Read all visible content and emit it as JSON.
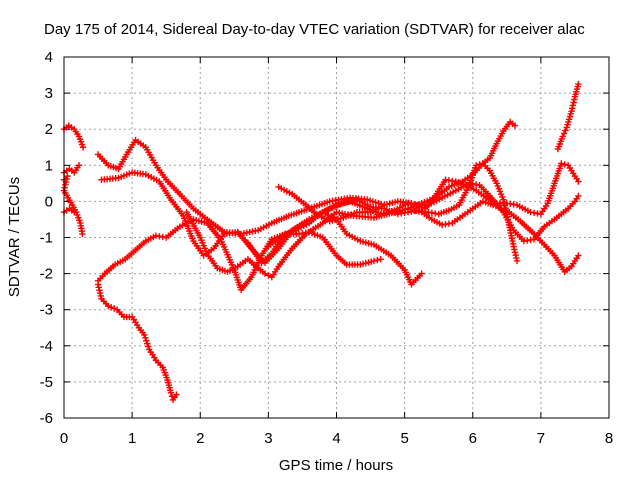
{
  "chart_data": {
    "type": "scatter",
    "title": "Day 175 of 2014, Sidereal Day-to-day VTEC variation (SDTVAR) for receiver alac",
    "xlabel": "GPS time / hours",
    "ylabel": "SDTVAR / TECUs",
    "xlim": [
      0,
      8
    ],
    "ylim": [
      -6,
      4
    ],
    "xticks": [
      "0",
      "1",
      "2",
      "3",
      "4",
      "5",
      "6",
      "7",
      "8"
    ],
    "yticks": [
      "-6",
      "-5",
      "-4",
      "-3",
      "-2",
      "-1",
      "0",
      "1",
      "2",
      "3",
      "4"
    ],
    "grid": true,
    "marker": "plus",
    "color": "#ff0000",
    "series": [
      {
        "name": "track-1",
        "points": [
          [
            0.0,
            2.0
          ],
          [
            0.07,
            2.1
          ],
          [
            0.15,
            2.0
          ],
          [
            0.22,
            1.8
          ],
          [
            0.28,
            1.5
          ]
        ]
      },
      {
        "name": "track-2",
        "points": [
          [
            0.0,
            0.8
          ],
          [
            0.08,
            0.9
          ],
          [
            0.15,
            0.8
          ],
          [
            0.22,
            1.0
          ]
        ]
      },
      {
        "name": "track-3",
        "points": [
          [
            0.0,
            0.6
          ],
          [
            0.05,
            0.7
          ],
          [
            0.0,
            0.3
          ],
          [
            0.06,
            0.1
          ],
          [
            0.12,
            -0.1
          ],
          [
            0.18,
            -0.3
          ],
          [
            0.24,
            -0.6
          ],
          [
            0.27,
            -0.9
          ]
        ]
      },
      {
        "name": "track-4",
        "points": [
          [
            0.0,
            -0.3
          ],
          [
            0.08,
            -0.2
          ],
          [
            0.15,
            -0.3
          ]
        ]
      },
      {
        "name": "track-5",
        "points": [
          [
            0.5,
            1.3
          ],
          [
            0.65,
            1.0
          ],
          [
            0.8,
            0.9
          ],
          [
            0.92,
            1.3
          ],
          [
            1.05,
            1.7
          ],
          [
            1.2,
            1.5
          ],
          [
            1.35,
            1.0
          ],
          [
            1.5,
            0.6
          ],
          [
            1.7,
            0.2
          ],
          [
            1.9,
            -0.2
          ],
          [
            2.1,
            -0.5
          ],
          [
            2.35,
            -0.85
          ],
          [
            2.6,
            -0.9
          ],
          [
            2.85,
            -0.8
          ],
          [
            3.05,
            -0.6
          ],
          [
            3.3,
            -0.4
          ],
          [
            3.6,
            -0.2
          ],
          [
            3.9,
            0.0
          ],
          [
            4.2,
            0.1
          ],
          [
            4.45,
            0.05
          ],
          [
            4.7,
            -0.1
          ]
        ]
      },
      {
        "name": "track-6",
        "points": [
          [
            0.55,
            0.6
          ],
          [
            0.8,
            0.65
          ],
          [
            1.0,
            0.8
          ],
          [
            1.2,
            0.75
          ],
          [
            1.4,
            0.55
          ],
          [
            1.55,
            0.1
          ],
          [
            1.75,
            -0.4
          ],
          [
            1.9,
            -1.1
          ],
          [
            2.05,
            -1.5
          ],
          [
            2.2,
            -1.3
          ],
          [
            2.35,
            -0.9
          ],
          [
            2.55,
            -0.85
          ],
          [
            2.75,
            -1.3
          ],
          [
            2.95,
            -1.7
          ],
          [
            3.15,
            -1.3
          ],
          [
            3.35,
            -0.8
          ],
          [
            3.6,
            -0.5
          ],
          [
            3.8,
            -0.3
          ],
          [
            4.0,
            -0.5
          ],
          [
            4.15,
            -0.9
          ],
          [
            4.35,
            -1.1
          ],
          [
            4.55,
            -1.2
          ],
          [
            4.8,
            -1.5
          ],
          [
            5.0,
            -1.9
          ],
          [
            5.1,
            -2.3
          ],
          [
            5.25,
            -2.0
          ]
        ]
      },
      {
        "name": "track-7",
        "points": [
          [
            0.5,
            -2.2
          ],
          [
            0.6,
            -2.0
          ],
          [
            0.75,
            -1.75
          ],
          [
            0.9,
            -1.6
          ],
          [
            1.05,
            -1.35
          ],
          [
            1.2,
            -1.1
          ],
          [
            1.35,
            -0.95
          ],
          [
            1.5,
            -1.0
          ],
          [
            1.7,
            -0.7
          ],
          [
            1.9,
            -0.5
          ],
          [
            2.1,
            -0.6
          ],
          [
            2.3,
            -1.05
          ],
          [
            2.5,
            -1.9
          ],
          [
            2.6,
            -2.45
          ],
          [
            2.75,
            -2.1
          ],
          [
            2.9,
            -1.5
          ],
          [
            3.05,
            -1.05
          ],
          [
            3.25,
            -0.9
          ],
          [
            3.45,
            -0.9
          ],
          [
            3.6,
            -0.85
          ],
          [
            3.8,
            -1.0
          ],
          [
            4.0,
            -1.5
          ],
          [
            4.15,
            -1.75
          ],
          [
            4.35,
            -1.75
          ],
          [
            4.55,
            -1.65
          ],
          [
            4.65,
            -1.6
          ]
        ]
      },
      {
        "name": "track-8",
        "points": [
          [
            0.5,
            -2.3
          ],
          [
            0.55,
            -2.7
          ],
          [
            0.65,
            -2.9
          ],
          [
            0.78,
            -3.0
          ],
          [
            0.88,
            -3.2
          ],
          [
            1.0,
            -3.2
          ],
          [
            1.1,
            -3.5
          ],
          [
            1.18,
            -3.7
          ],
          [
            1.25,
            -4.1
          ],
          [
            1.35,
            -4.4
          ],
          [
            1.45,
            -4.6
          ],
          [
            1.52,
            -4.95
          ],
          [
            1.57,
            -5.3
          ],
          [
            1.6,
            -5.5
          ],
          [
            1.65,
            -5.35
          ]
        ]
      },
      {
        "name": "track-9",
        "points": [
          [
            1.8,
            -0.3
          ],
          [
            2.0,
            -1.0
          ],
          [
            2.1,
            -1.45
          ],
          [
            2.25,
            -1.85
          ],
          [
            2.4,
            -1.95
          ],
          [
            2.55,
            -1.8
          ],
          [
            2.7,
            -1.6
          ],
          [
            2.85,
            -1.85
          ],
          [
            2.95,
            -2.0
          ],
          [
            3.05,
            -2.1
          ],
          [
            3.15,
            -1.8
          ],
          [
            3.35,
            -1.3
          ],
          [
            3.55,
            -0.9
          ],
          [
            3.8,
            -0.6
          ],
          [
            4.0,
            -0.3
          ],
          [
            4.25,
            -0.4
          ],
          [
            4.55,
            -0.45
          ],
          [
            4.85,
            -0.3
          ],
          [
            5.05,
            -0.2
          ],
          [
            5.25,
            -0.3
          ],
          [
            5.4,
            -0.5
          ],
          [
            5.55,
            -0.65
          ],
          [
            5.7,
            -0.6
          ],
          [
            5.85,
            -0.4
          ],
          [
            6.0,
            -0.2
          ],
          [
            6.15,
            0.0
          ],
          [
            6.3,
            -0.1
          ],
          [
            6.5,
            -0.25
          ],
          [
            6.7,
            -0.55
          ],
          [
            6.9,
            -0.9
          ],
          [
            7.05,
            -1.2
          ],
          [
            7.2,
            -1.5
          ],
          [
            7.35,
            -1.95
          ],
          [
            7.45,
            -1.8
          ],
          [
            7.55,
            -1.5
          ]
        ]
      },
      {
        "name": "track-10",
        "points": [
          [
            2.7,
            -1.15
          ],
          [
            2.9,
            -1.7
          ],
          [
            3.05,
            -1.45
          ],
          [
            3.2,
            -1.0
          ],
          [
            3.4,
            -0.75
          ],
          [
            3.6,
            -0.5
          ],
          [
            3.8,
            -0.3
          ],
          [
            4.0,
            -0.1
          ],
          [
            4.2,
            0.0
          ],
          [
            4.45,
            -0.2
          ],
          [
            4.65,
            -0.35
          ],
          [
            4.85,
            -0.25
          ],
          [
            5.05,
            -0.05
          ],
          [
            5.2,
            -0.1
          ],
          [
            5.35,
            -0.1
          ],
          [
            5.55,
            0.1
          ],
          [
            5.75,
            0.3
          ],
          [
            5.95,
            0.5
          ],
          [
            6.1,
            0.45
          ],
          [
            6.25,
            0.15
          ],
          [
            6.45,
            -0.3
          ],
          [
            6.6,
            -0.8
          ],
          [
            6.75,
            -1.1
          ],
          [
            6.9,
            -1.05
          ],
          [
            7.05,
            -0.7
          ],
          [
            7.2,
            -0.5
          ],
          [
            7.4,
            -0.2
          ],
          [
            7.5,
            0.0
          ],
          [
            7.55,
            0.15
          ]
        ]
      },
      {
        "name": "track-11",
        "points": [
          [
            3.15,
            0.4
          ],
          [
            3.35,
            0.2
          ],
          [
            3.55,
            -0.1
          ],
          [
            3.7,
            -0.35
          ],
          [
            3.9,
            -0.55
          ],
          [
            4.1,
            -0.45
          ],
          [
            4.3,
            -0.3
          ],
          [
            4.5,
            -0.3
          ],
          [
            4.7,
            -0.1
          ],
          [
            4.9,
            0.0
          ],
          [
            5.1,
            -0.05
          ],
          [
            5.3,
            -0.2
          ],
          [
            5.45,
            0.15
          ],
          [
            5.6,
            0.6
          ],
          [
            5.75,
            0.55
          ],
          [
            5.9,
            0.45
          ],
          [
            6.05,
            0.3
          ],
          [
            6.2,
            0.1
          ],
          [
            6.35,
            -0.05
          ],
          [
            6.5,
            -0.05
          ],
          [
            6.65,
            -0.1
          ],
          [
            6.85,
            -0.3
          ],
          [
            7.0,
            -0.35
          ],
          [
            7.1,
            -0.05
          ],
          [
            7.2,
            0.5
          ],
          [
            7.3,
            1.05
          ],
          [
            7.4,
            1.0
          ],
          [
            7.5,
            0.7
          ],
          [
            7.55,
            0.55
          ]
        ]
      },
      {
        "name": "track-12",
        "points": [
          [
            3.0,
            -1.25
          ],
          [
            3.2,
            -0.95
          ],
          [
            3.4,
            -0.8
          ],
          [
            3.6,
            -0.6
          ],
          [
            3.75,
            -0.35
          ],
          [
            3.9,
            -0.2
          ],
          [
            4.1,
            -0.05
          ],
          [
            4.3,
            0.05
          ],
          [
            4.5,
            -0.15
          ],
          [
            4.7,
            -0.2
          ],
          [
            4.9,
            -0.35
          ],
          [
            5.05,
            -0.3
          ],
          [
            5.2,
            -0.25
          ],
          [
            5.35,
            -0.3
          ],
          [
            5.5,
            -0.35
          ],
          [
            5.65,
            -0.25
          ],
          [
            5.8,
            -0.1
          ],
          [
            5.95,
            0.45
          ],
          [
            6.05,
            1.0
          ],
          [
            6.15,
            1.05
          ],
          [
            6.25,
            0.85
          ],
          [
            6.35,
            0.5
          ],
          [
            6.45,
            0.05
          ],
          [
            6.5,
            -0.35
          ],
          [
            6.55,
            -0.8
          ],
          [
            6.6,
            -1.25
          ],
          [
            6.65,
            -1.65
          ]
        ]
      },
      {
        "name": "track-13",
        "points": [
          [
            5.05,
            -0.2
          ],
          [
            5.25,
            -0.05
          ],
          [
            5.45,
            0.1
          ],
          [
            5.65,
            0.4
          ],
          [
            5.85,
            0.55
          ],
          [
            6.0,
            0.75
          ],
          [
            6.15,
            1.05
          ],
          [
            6.25,
            1.2
          ],
          [
            6.35,
            1.6
          ],
          [
            6.45,
            1.95
          ],
          [
            6.55,
            2.2
          ],
          [
            6.62,
            2.1
          ]
        ]
      },
      {
        "name": "track-14",
        "points": [
          [
            7.25,
            1.45
          ],
          [
            7.32,
            1.8
          ],
          [
            7.38,
            2.05
          ],
          [
            7.45,
            2.5
          ],
          [
            7.5,
            2.9
          ],
          [
            7.55,
            3.25
          ]
        ]
      }
    ]
  }
}
